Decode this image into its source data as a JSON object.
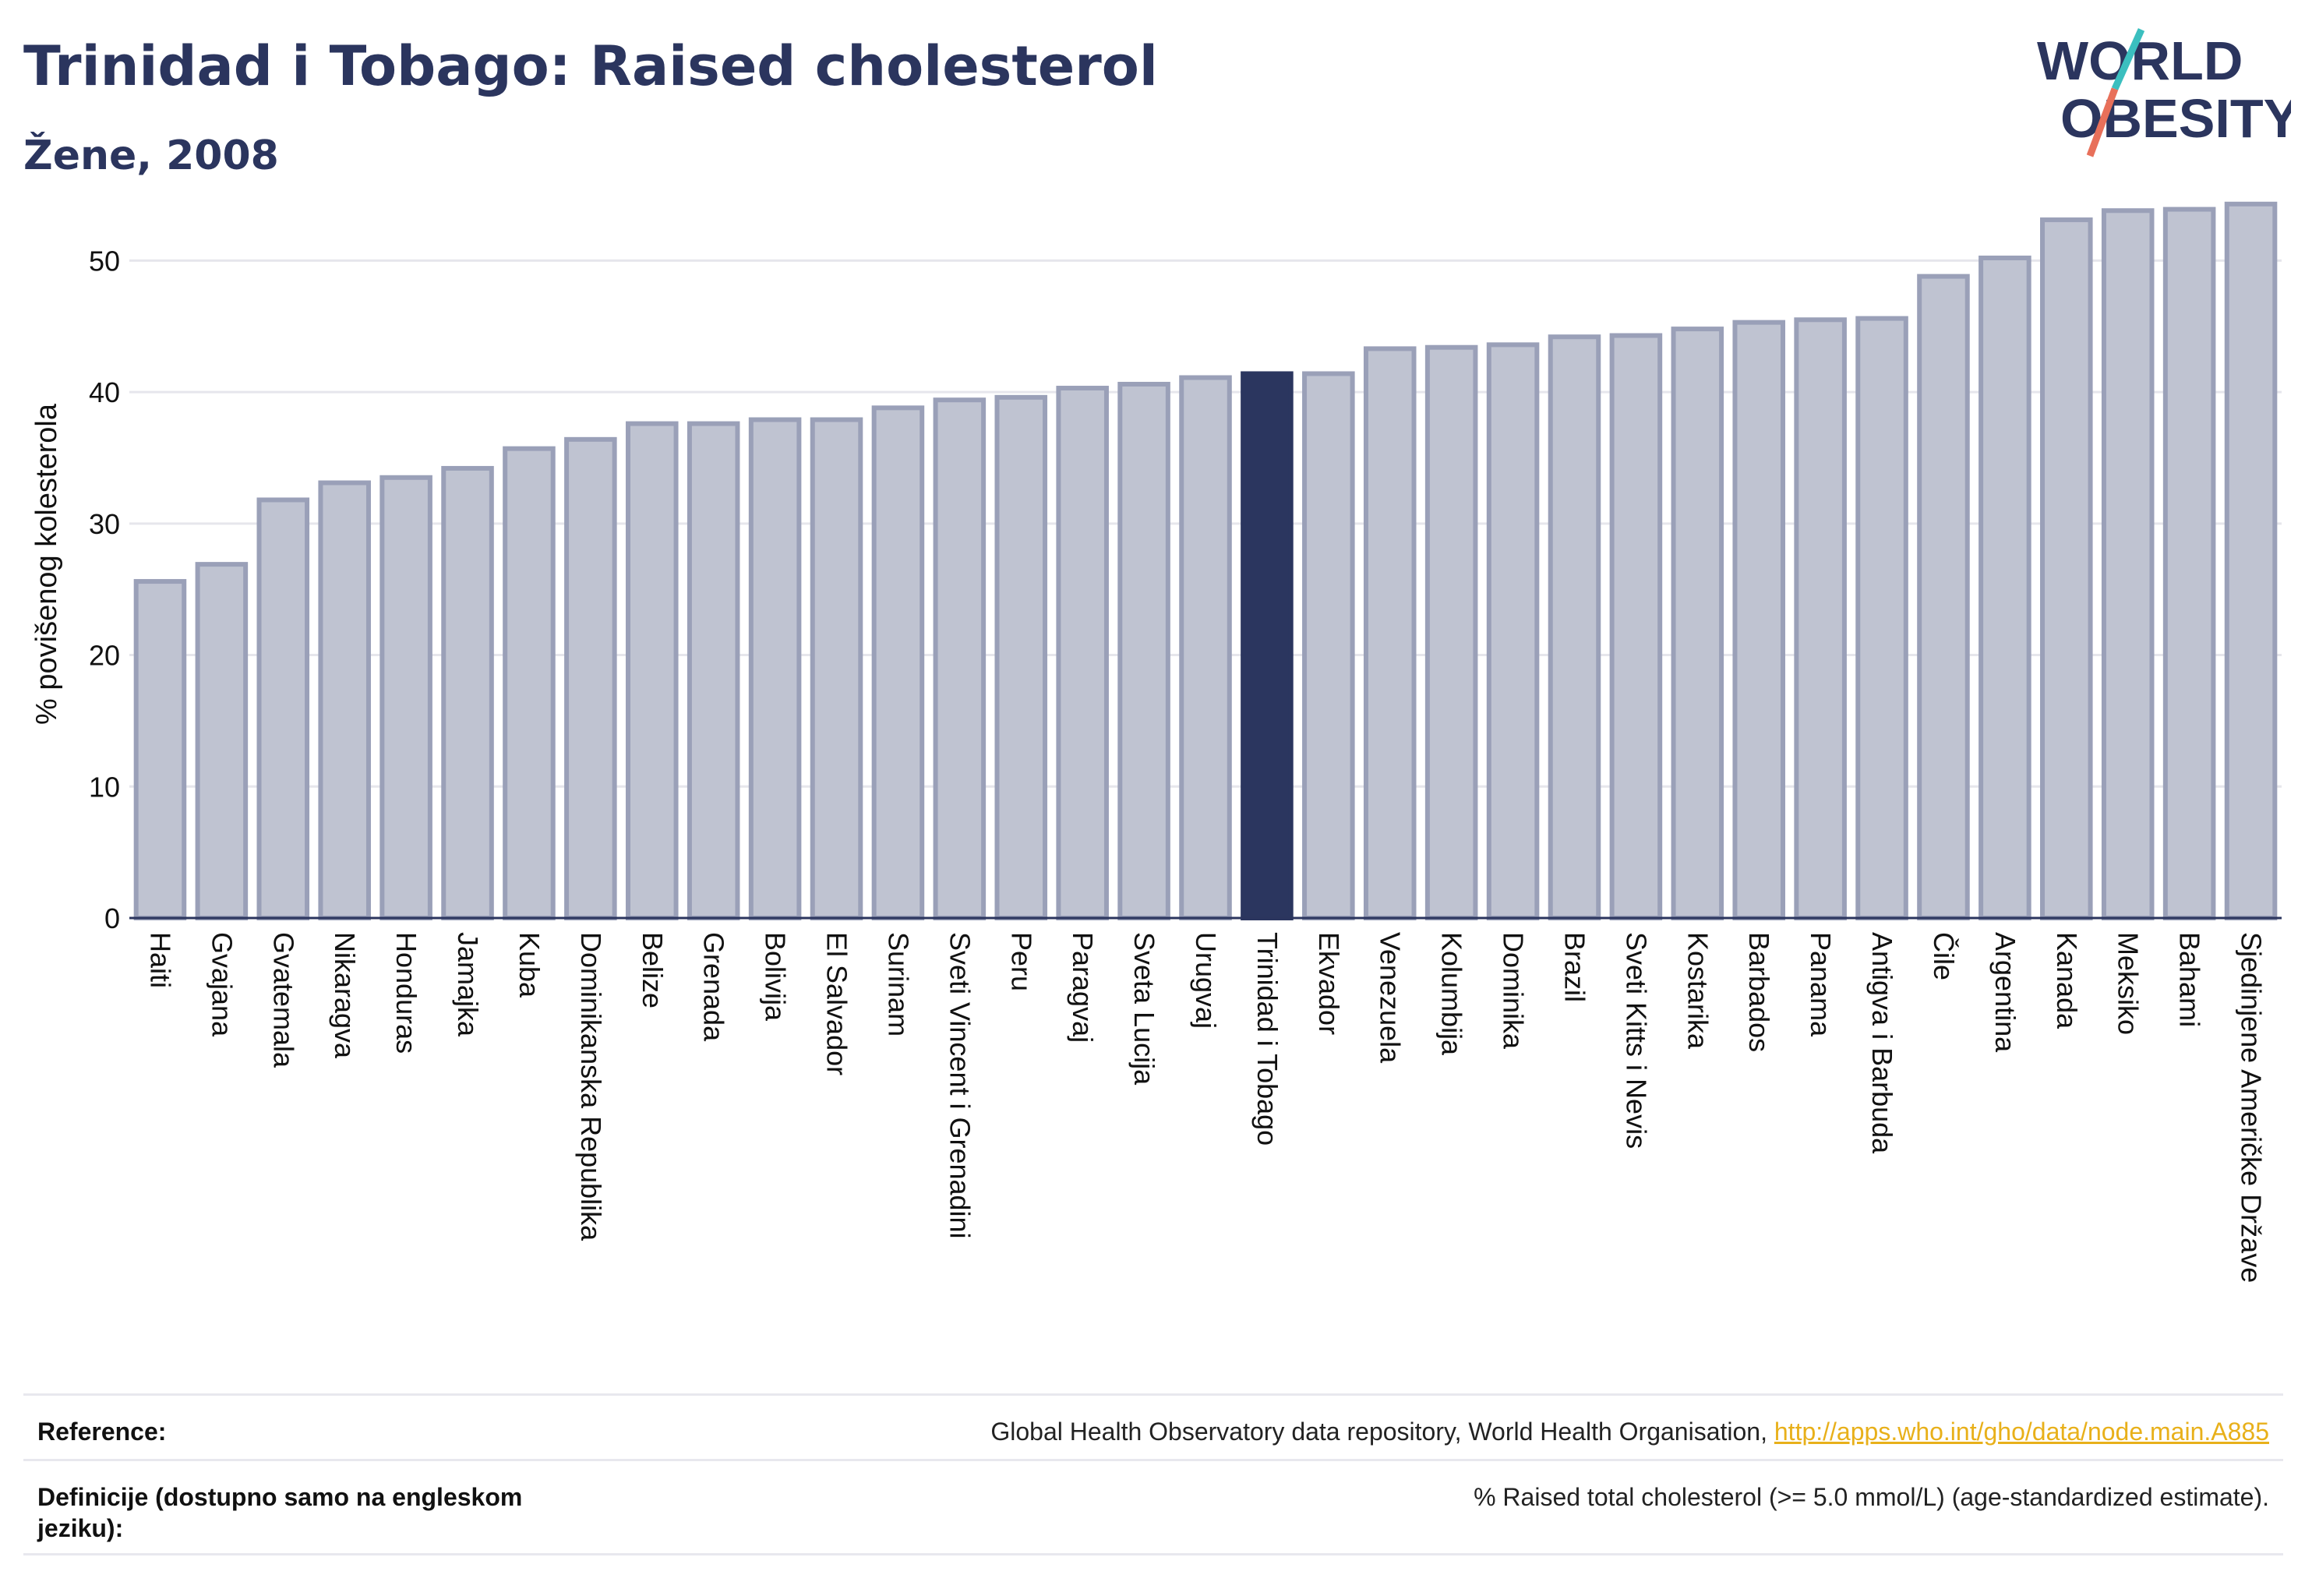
{
  "header": {
    "title": "Trinidad i Tobago: Raised cholesterol",
    "subtitle": "Žene, 2008"
  },
  "logo": {
    "line1": "WORLD",
    "line2": "OBESITY"
  },
  "colors": {
    "highlight": "#2b365f",
    "bar_fill": "#bfc3d1",
    "bar_stroke": "#9aa0b8",
    "text": "#2b355e",
    "link": "#e8b01a",
    "logo_teal": "#3bbfbf",
    "logo_coral": "#e8705a"
  },
  "chart_data": {
    "type": "bar",
    "title": "Trinidad i Tobago: Raised cholesterol",
    "subtitle": "Žene, 2008",
    "ylabel": "% povišenog kolesterola",
    "xlabel": "",
    "ylim": [
      0,
      55
    ],
    "yticks": [
      0,
      10,
      20,
      30,
      40,
      50
    ],
    "grid": true,
    "highlight": "Trinidad i Tobago",
    "categories": [
      "Haiti",
      "Gvajana",
      "Gvatemala",
      "Nikaragva",
      "Honduras",
      "Jamajka",
      "Kuba",
      "Dominikanska Republika",
      "Belize",
      "Grenada",
      "Bolivija",
      "El Salvador",
      "Surinam",
      "Sveti Vincent i Grenadini",
      "Peru",
      "Paragvaj",
      "Sveta Lucija",
      "Urugvaj",
      "Trinidad i Tobago",
      "Ekvador",
      "Venezuela",
      "Kolumbija",
      "Dominika",
      "Brazil",
      "Sveti Kitts i Nevis",
      "Kostarika",
      "Barbados",
      "Panama",
      "Antigva i Barbuda",
      "Čile",
      "Argentina",
      "Kanada",
      "Meksiko",
      "Bahami",
      "Sjedinjene Američke Države"
    ],
    "values": [
      25.6,
      26.9,
      31.8,
      33.1,
      33.5,
      34.2,
      35.7,
      36.4,
      37.6,
      37.6,
      37.9,
      37.9,
      38.8,
      39.4,
      39.6,
      40.3,
      40.6,
      41.1,
      41.4,
      41.4,
      43.3,
      43.4,
      43.6,
      44.2,
      44.3,
      44.8,
      45.3,
      45.5,
      45.6,
      48.8,
      50.2,
      53.1,
      53.8,
      53.9,
      54.3
    ]
  },
  "reference": {
    "label": "Reference:",
    "text": "Global Health Observatory data repository, World Health Organisation, ",
    "link": "http://apps.who.int/gho/data/node.main.A885"
  },
  "definition": {
    "label": "Definicije (dostupno samo na engleskom jeziku):",
    "text": "% Raised total cholesterol (>= 5.0 mmol/L) (age-standardized estimate)."
  }
}
